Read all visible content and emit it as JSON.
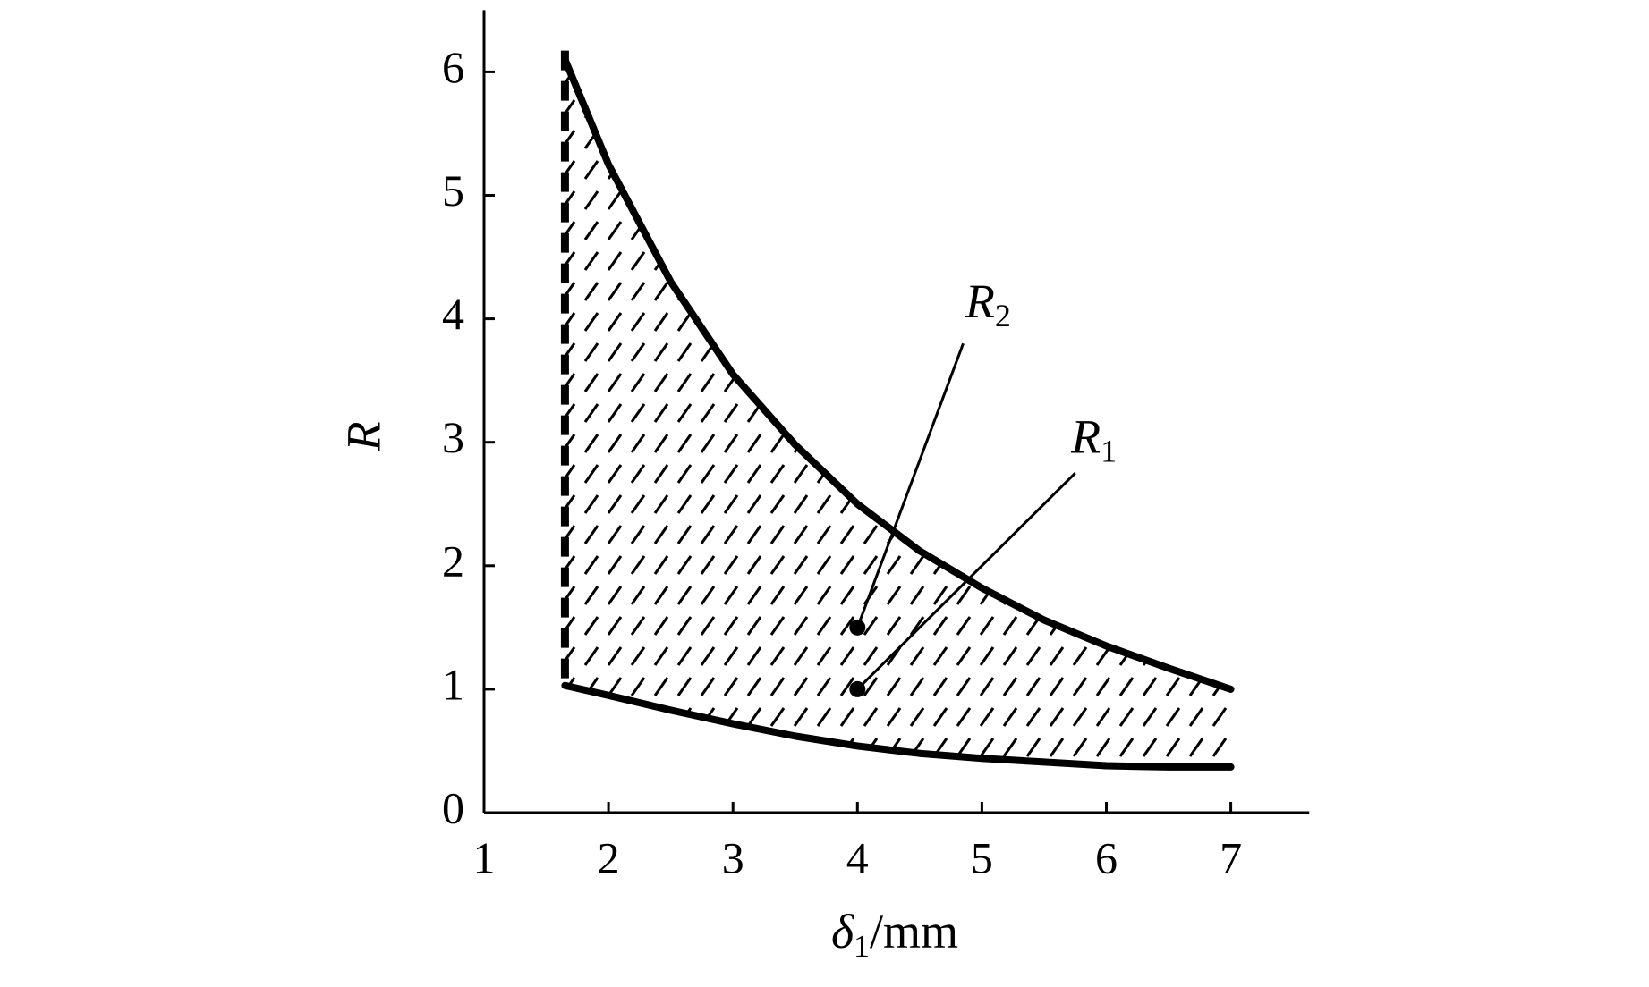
{
  "chart_data": {
    "type": "region",
    "x_label": {
      "symbol": "δ",
      "sub": "1",
      "unit": "/mm"
    },
    "y_label": "R",
    "xlim": [
      1,
      7.63
    ],
    "ylim": [
      0,
      6.5
    ],
    "xticks": [
      1,
      2,
      3,
      4,
      5,
      6,
      7
    ],
    "yticks": [
      0,
      1,
      2,
      3,
      4,
      5,
      6
    ],
    "color": "#000000",
    "hatch": true,
    "upper": {
      "x": [
        1.65,
        2,
        2.5,
        3,
        3.5,
        4,
        4.5,
        5,
        5.5,
        6,
        6.5,
        7
      ],
      "values": [
        6.1,
        5.25,
        4.3,
        3.55,
        2.98,
        2.5,
        2.12,
        1.82,
        1.56,
        1.35,
        1.17,
        1.0
      ]
    },
    "lower": {
      "x": [
        1.65,
        2,
        2.5,
        3,
        3.5,
        4,
        4.5,
        5,
        5.5,
        6,
        6.5,
        7
      ],
      "values": [
        1.03,
        0.95,
        0.83,
        0.72,
        0.62,
        0.54,
        0.48,
        0.44,
        0.41,
        0.38,
        0.37,
        0.37
      ]
    },
    "points": [
      {
        "symbol": "R",
        "sub": "2",
        "x": 4,
        "y": 1.5
      },
      {
        "symbol": "R",
        "sub": "1",
        "x": 4,
        "y": 1.0
      }
    ]
  }
}
